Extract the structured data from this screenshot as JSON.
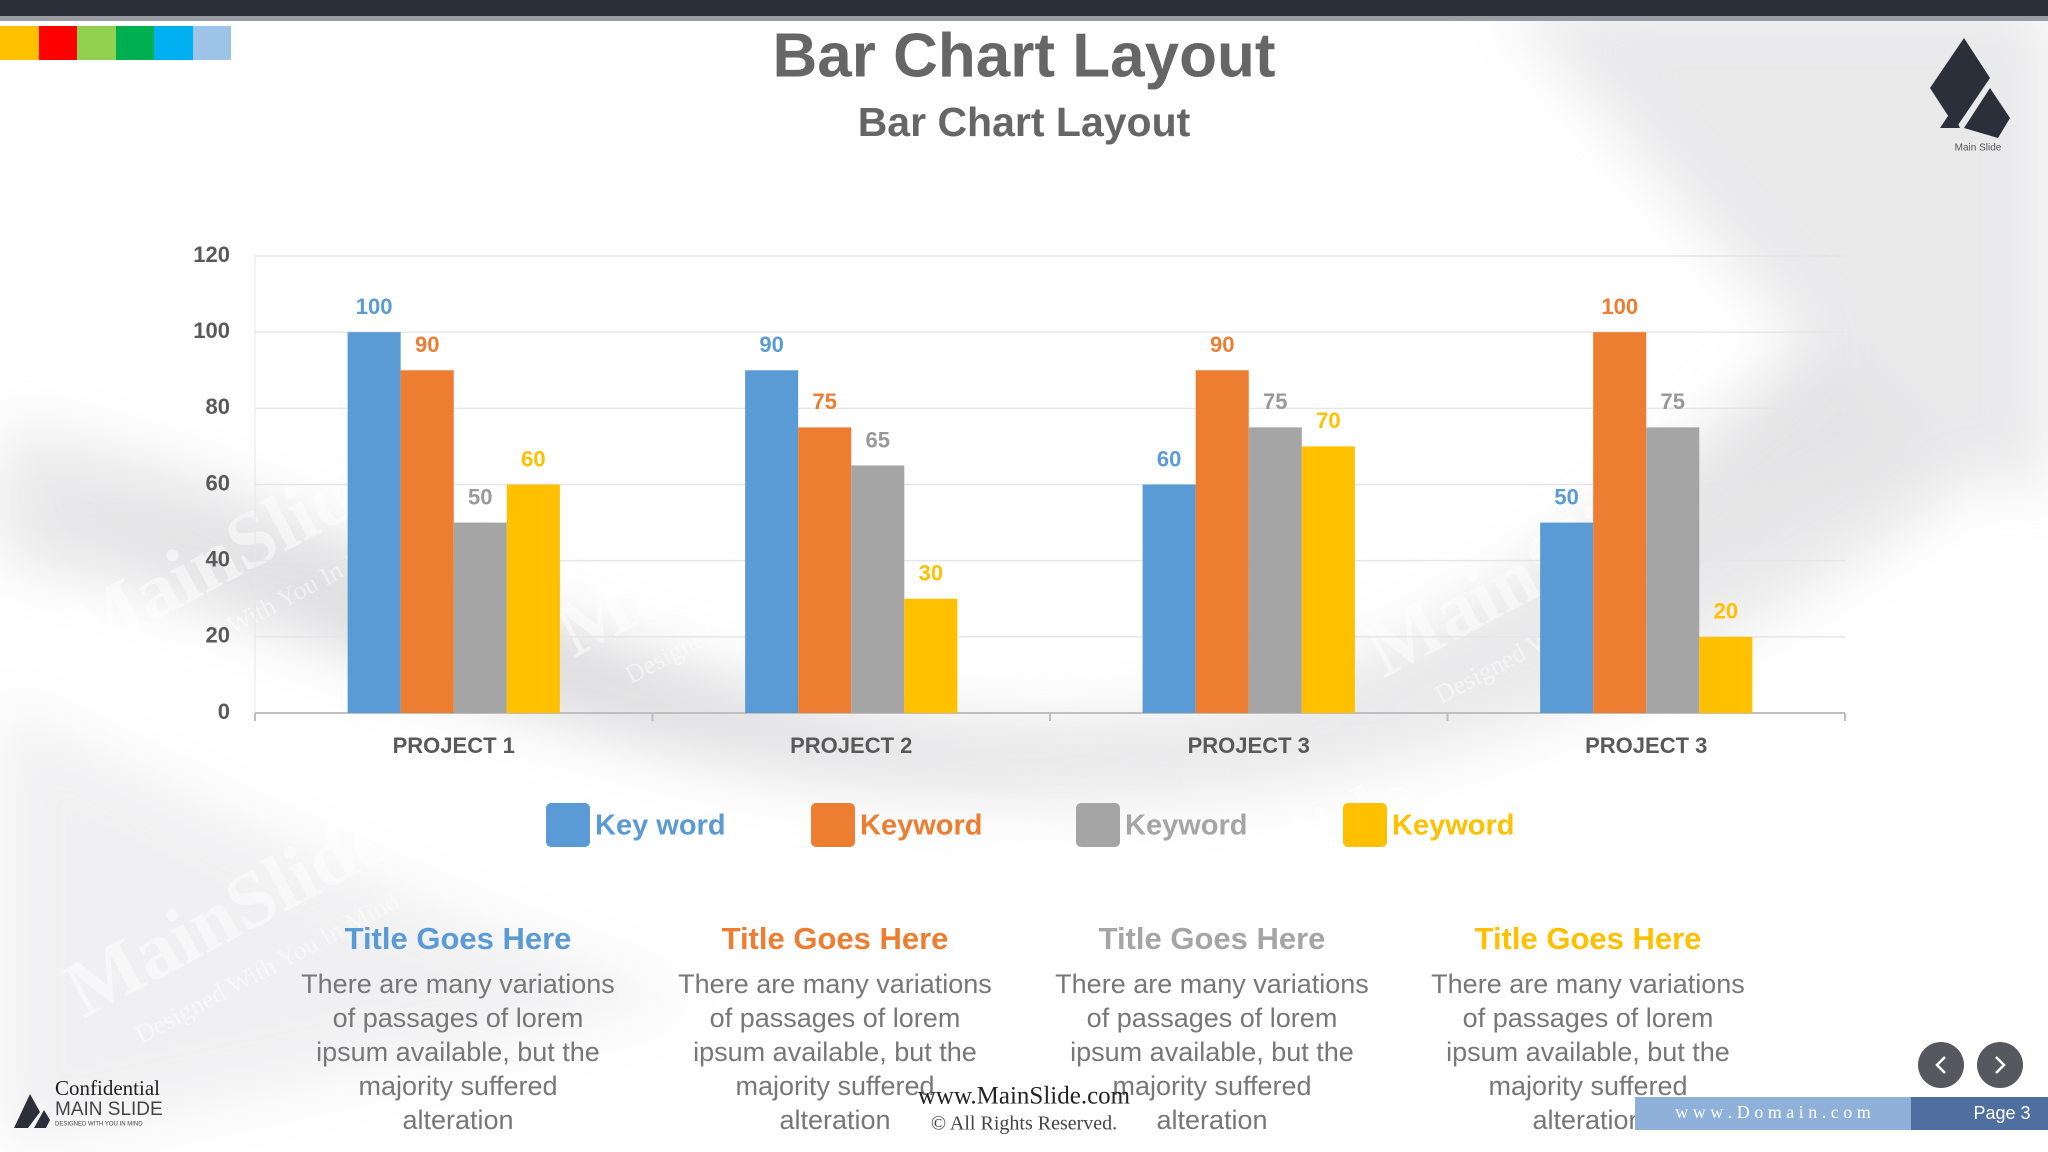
{
  "header": {
    "title": "Bar Chart Layout",
    "subtitle": "Bar Chart Layout",
    "logo_text": "Main Slide"
  },
  "chart_data": {
    "type": "bar",
    "categories": [
      "PROJECT 1",
      "PROJECT 2",
      "PROJECT 3",
      "PROJECT 3"
    ],
    "series": [
      {
        "name": "Key word",
        "color": "#5b9bd5",
        "values": [
          100,
          90,
          60,
          50
        ]
      },
      {
        "name": "Keyword",
        "color": "#ed7d31",
        "values": [
          90,
          75,
          90,
          100
        ]
      },
      {
        "name": "Keyword",
        "color": "#a5a5a5",
        "values": [
          50,
          65,
          75,
          75
        ]
      },
      {
        "name": "Keyword",
        "color": "#ffc000",
        "values": [
          60,
          30,
          70,
          20
        ]
      }
    ],
    "ylim": [
      0,
      120
    ],
    "yticks": [
      0,
      20,
      40,
      60,
      80,
      100,
      120
    ],
    "grid": true,
    "legend": "bottom"
  },
  "blocks": [
    {
      "title": "Title Goes Here",
      "color": "#5b9bd5",
      "lines": [
        "There are many variations",
        "of passages of lorem",
        "ipsum available, but the",
        "majority suffered",
        "alteration"
      ]
    },
    {
      "title": "Title Goes Here",
      "color": "#ed7d31",
      "lines": [
        "There are many variations",
        "of passages of lorem",
        "ipsum available, but the",
        "majority suffered",
        "alteration"
      ]
    },
    {
      "title": "Title Goes Here",
      "color": "#a5a5a5",
      "lines": [
        "There are many variations",
        "of passages of lorem",
        "ipsum available, but the",
        "majority suffered",
        "alteration"
      ]
    },
    {
      "title": "Title Goes Here",
      "color": "#ffc000",
      "lines": [
        "There are many variations",
        "of passages of lorem",
        "ipsum available, but the",
        "majority suffered",
        "alteration"
      ]
    }
  ],
  "watermark": {
    "brand": "MainSlide",
    "tagline": "Designed With You In Mind"
  },
  "footer": {
    "confidential": "Confidential",
    "brand": "MAIN SLIDE",
    "tagline": "DESIGNED WITH YOU IN MIND",
    "website": "www.MainSlide.com",
    "rights": "© All Rights Reserved.",
    "domain": "w w w . D o m a i n . c o m",
    "page": "Page 3"
  }
}
